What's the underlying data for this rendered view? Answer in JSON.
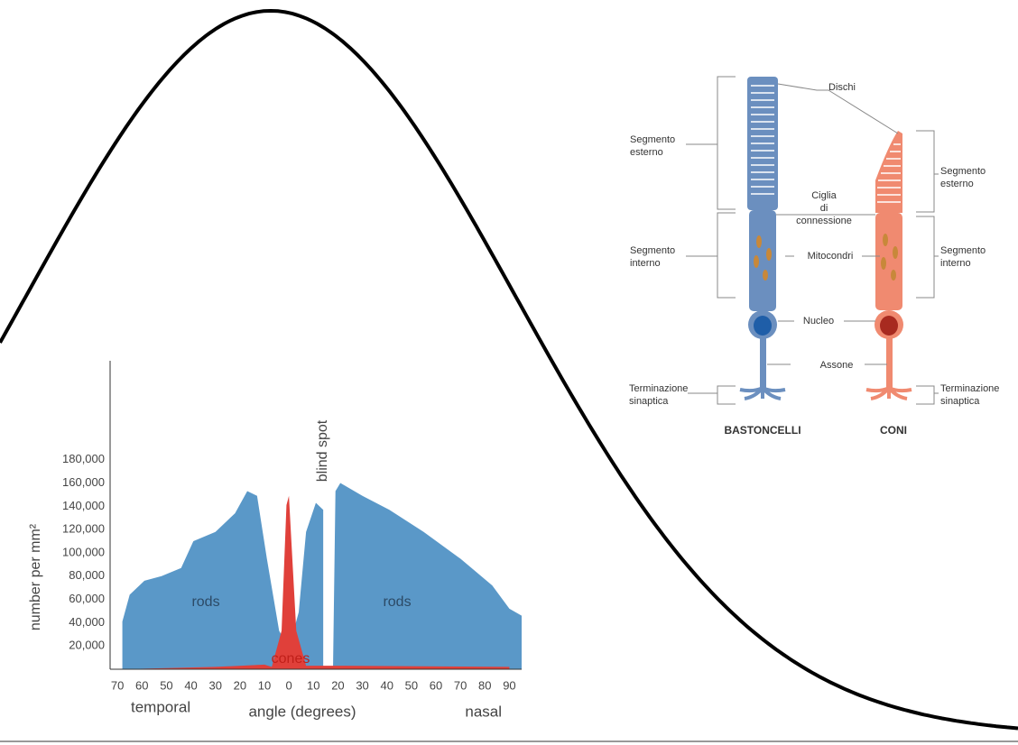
{
  "chart_data": {
    "type": "area",
    "y_label": "number per mm²",
    "x_label": "angle (degrees)",
    "annotations": [
      "rods",
      "rods",
      "cones",
      "blind spot",
      "temporal",
      "nasal"
    ],
    "xlim": [
      -73,
      95
    ],
    "ylim": [
      0,
      265000
    ],
    "xticks": [
      {
        "value": -70,
        "label": "70"
      },
      {
        "value": -60,
        "label": "60"
      },
      {
        "value": -50,
        "label": "50"
      },
      {
        "value": -40,
        "label": "40"
      },
      {
        "value": -30,
        "label": "30"
      },
      {
        "value": -20,
        "label": "20"
      },
      {
        "value": -10,
        "label": "10"
      },
      0,
      10,
      20,
      30,
      40,
      50,
      60,
      70,
      80,
      90
    ],
    "yticks": [
      {
        "value": 20000,
        "label": "20,000"
      },
      {
        "value": 40000,
        "label": "40,000"
      },
      {
        "value": 60000,
        "label": "60,000"
      },
      {
        "value": 80000,
        "label": "80,000"
      },
      {
        "value": 100000,
        "label": "100,000"
      },
      {
        "value": 120000,
        "label": "120,000"
      },
      {
        "value": 140000,
        "label": "140,000"
      },
      {
        "value": 160000,
        "label": "160,000"
      },
      {
        "value": 180000,
        "label": "180,000"
      }
    ],
    "series": [
      {
        "name": "rods",
        "color": "#5a98c8",
        "x": [
          -68,
          -65,
          -59,
          -52,
          -44,
          -39,
          -30,
          -22,
          -17,
          -13,
          -9,
          -4,
          0,
          4,
          7,
          11,
          14,
          14,
          16,
          18,
          19,
          21,
          30,
          41,
          55,
          70,
          83,
          90,
          95
        ],
        "values": [
          41000,
          64000,
          76000,
          80000,
          87000,
          110000,
          118000,
          134000,
          153000,
          149000,
          95000,
          33000,
          18000,
          49000,
          118000,
          143000,
          137000,
          0,
          null,
          0,
          153000,
          160000,
          149000,
          137000,
          118000,
          95000,
          72000,
          52000,
          46000
        ]
      },
      {
        "name": "cones",
        "color": "#e0403a",
        "x": [
          -68,
          -30,
          -10,
          -7,
          -3,
          -1,
          0,
          1,
          3,
          7,
          20,
          90
        ],
        "values": [
          0,
          2000,
          4000,
          2000,
          33000,
          141000,
          149000,
          110000,
          33000,
          3000,
          3000,
          2000
        ]
      }
    ]
  },
  "diagram": {
    "labels": [
      {
        "lines": [
          "Dischi"
        ]
      },
      {
        "lines": [
          "Segmento",
          "esterno"
        ]
      },
      {
        "lines": [
          "Segmento",
          "esterno"
        ]
      },
      {
        "lines": [
          "Ciglia",
          "di",
          "connessione"
        ]
      },
      {
        "lines": [
          "Segmento",
          "interno"
        ]
      },
      {
        "lines": [
          "Mitocondri"
        ]
      },
      {
        "lines": [
          "Segmento",
          "interno"
        ]
      },
      {
        "lines": [
          "Nucleo"
        ]
      },
      {
        "lines": [
          "Assone"
        ]
      },
      {
        "lines": [
          "Terminazione",
          "sinaptica"
        ]
      },
      {
        "lines": [
          "Terminazione",
          "sinaptica"
        ]
      },
      {
        "lines": [
          "BASTONCELLI"
        ]
      },
      {
        "lines": [
          "CONI"
        ]
      }
    ]
  }
}
